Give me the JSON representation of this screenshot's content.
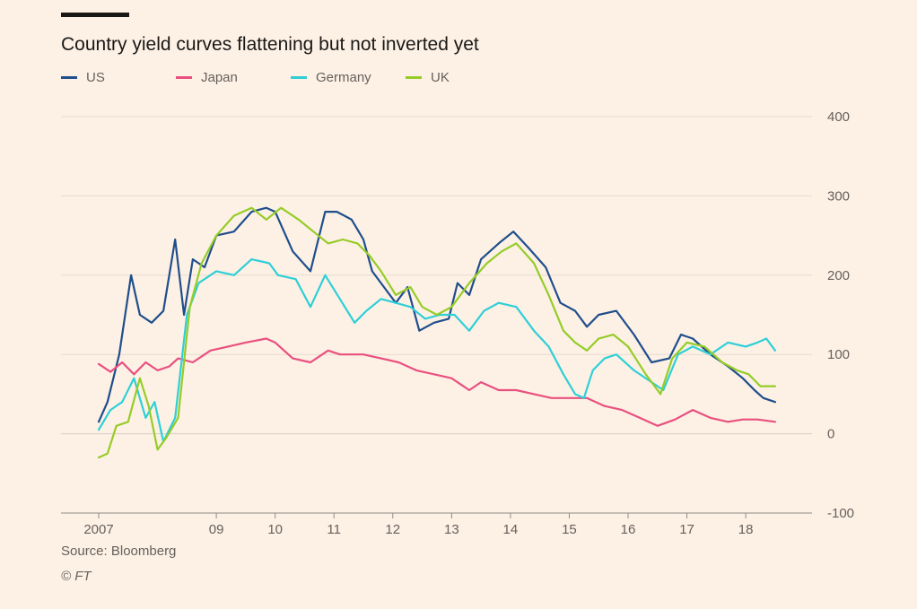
{
  "chart_data": {
    "type": "line",
    "title": "Country yield curves flattening but not inverted yet",
    "xlabel": "",
    "ylabel": "",
    "xlim": [
      2007.0,
      2018.7
    ],
    "ylim": [
      -100,
      400
    ],
    "y_ticks": [
      400,
      300,
      200,
      100,
      0,
      -100
    ],
    "x_ticks": [
      {
        "value": 2007.0,
        "label": "2007"
      },
      {
        "value": 2009.0,
        "label": "09"
      },
      {
        "value": 2010.0,
        "label": "10"
      },
      {
        "value": 2011.0,
        "label": "11"
      },
      {
        "value": 2012.0,
        "label": "12"
      },
      {
        "value": 2013.0,
        "label": "13"
      },
      {
        "value": 2014.0,
        "label": "14"
      },
      {
        "value": 2015.0,
        "label": "15"
      },
      {
        "value": 2016.0,
        "label": "16"
      },
      {
        "value": 2017.0,
        "label": "17"
      },
      {
        "value": 2018.0,
        "label": "18"
      }
    ],
    "grid": true,
    "legend_position": "top-left",
    "series": [
      {
        "name": "US",
        "color": "#1f4e8c",
        "points": [
          [
            2007.0,
            15
          ],
          [
            2007.15,
            40
          ],
          [
            2007.35,
            100
          ],
          [
            2007.45,
            150
          ],
          [
            2007.55,
            200
          ],
          [
            2007.7,
            150
          ],
          [
            2007.9,
            140
          ],
          [
            2008.1,
            155
          ],
          [
            2008.3,
            245
          ],
          [
            2008.45,
            150
          ],
          [
            2008.6,
            220
          ],
          [
            2008.8,
            210
          ],
          [
            2009.0,
            250
          ],
          [
            2009.3,
            255
          ],
          [
            2009.6,
            280
          ],
          [
            2009.85,
            285
          ],
          [
            2010.0,
            280
          ],
          [
            2010.3,
            230
          ],
          [
            2010.6,
            205
          ],
          [
            2010.85,
            280
          ],
          [
            2011.05,
            280
          ],
          [
            2011.3,
            270
          ],
          [
            2011.5,
            245
          ],
          [
            2011.65,
            205
          ],
          [
            2011.9,
            180
          ],
          [
            2012.05,
            165
          ],
          [
            2012.25,
            185
          ],
          [
            2012.45,
            130
          ],
          [
            2012.7,
            140
          ],
          [
            2012.95,
            145
          ],
          [
            2013.1,
            190
          ],
          [
            2013.3,
            175
          ],
          [
            2013.5,
            220
          ],
          [
            2013.8,
            240
          ],
          [
            2014.05,
            255
          ],
          [
            2014.3,
            235
          ],
          [
            2014.6,
            210
          ],
          [
            2014.85,
            165
          ],
          [
            2015.1,
            155
          ],
          [
            2015.3,
            135
          ],
          [
            2015.5,
            150
          ],
          [
            2015.8,
            155
          ],
          [
            2016.1,
            125
          ],
          [
            2016.4,
            90
          ],
          [
            2016.7,
            95
          ],
          [
            2016.9,
            125
          ],
          [
            2017.1,
            120
          ],
          [
            2017.4,
            100
          ],
          [
            2017.7,
            85
          ],
          [
            2017.95,
            70
          ],
          [
            2018.15,
            55
          ],
          [
            2018.3,
            45
          ],
          [
            2018.5,
            40
          ]
        ]
      },
      {
        "name": "Japan",
        "color": "#e9507f",
        "points": [
          [
            2007.0,
            88
          ],
          [
            2007.2,
            78
          ],
          [
            2007.4,
            90
          ],
          [
            2007.6,
            75
          ],
          [
            2007.8,
            90
          ],
          [
            2008.0,
            80
          ],
          [
            2008.2,
            85
          ],
          [
            2008.35,
            95
          ],
          [
            2008.6,
            90
          ],
          [
            2008.9,
            105
          ],
          [
            2009.2,
            110
          ],
          [
            2009.5,
            115
          ],
          [
            2009.85,
            120
          ],
          [
            2010.0,
            115
          ],
          [
            2010.3,
            95
          ],
          [
            2010.6,
            90
          ],
          [
            2010.9,
            105
          ],
          [
            2011.1,
            100
          ],
          [
            2011.5,
            100
          ],
          [
            2011.8,
            95
          ],
          [
            2012.1,
            90
          ],
          [
            2012.4,
            80
          ],
          [
            2012.7,
            75
          ],
          [
            2013.0,
            70
          ],
          [
            2013.3,
            55
          ],
          [
            2013.5,
            65
          ],
          [
            2013.8,
            55
          ],
          [
            2014.1,
            55
          ],
          [
            2014.4,
            50
          ],
          [
            2014.7,
            45
          ],
          [
            2015.0,
            45
          ],
          [
            2015.3,
            45
          ],
          [
            2015.6,
            35
          ],
          [
            2015.9,
            30
          ],
          [
            2016.2,
            20
          ],
          [
            2016.5,
            10
          ],
          [
            2016.8,
            18
          ],
          [
            2017.1,
            30
          ],
          [
            2017.4,
            20
          ],
          [
            2017.7,
            15
          ],
          [
            2017.95,
            18
          ],
          [
            2018.2,
            18
          ],
          [
            2018.5,
            15
          ]
        ]
      },
      {
        "name": "Germany",
        "color": "#2fcfd8",
        "points": [
          [
            2007.0,
            5
          ],
          [
            2007.2,
            30
          ],
          [
            2007.4,
            40
          ],
          [
            2007.6,
            70
          ],
          [
            2007.8,
            20
          ],
          [
            2007.95,
            40
          ],
          [
            2008.1,
            -10
          ],
          [
            2008.3,
            20
          ],
          [
            2008.5,
            150
          ],
          [
            2008.7,
            190
          ],
          [
            2009.0,
            205
          ],
          [
            2009.3,
            200
          ],
          [
            2009.6,
            220
          ],
          [
            2009.9,
            215
          ],
          [
            2010.05,
            200
          ],
          [
            2010.35,
            195
          ],
          [
            2010.6,
            160
          ],
          [
            2010.85,
            200
          ],
          [
            2011.1,
            170
          ],
          [
            2011.35,
            140
          ],
          [
            2011.55,
            155
          ],
          [
            2011.8,
            170
          ],
          [
            2012.05,
            165
          ],
          [
            2012.3,
            160
          ],
          [
            2012.55,
            145
          ],
          [
            2012.8,
            150
          ],
          [
            2013.05,
            150
          ],
          [
            2013.3,
            130
          ],
          [
            2013.55,
            155
          ],
          [
            2013.8,
            165
          ],
          [
            2014.1,
            160
          ],
          [
            2014.4,
            130
          ],
          [
            2014.65,
            110
          ],
          [
            2014.9,
            75
          ],
          [
            2015.1,
            50
          ],
          [
            2015.25,
            45
          ],
          [
            2015.4,
            80
          ],
          [
            2015.6,
            95
          ],
          [
            2015.8,
            100
          ],
          [
            2016.1,
            80
          ],
          [
            2016.4,
            65
          ],
          [
            2016.6,
            55
          ],
          [
            2016.85,
            100
          ],
          [
            2017.1,
            110
          ],
          [
            2017.4,
            100
          ],
          [
            2017.7,
            115
          ],
          [
            2018.0,
            110
          ],
          [
            2018.2,
            115
          ],
          [
            2018.35,
            120
          ],
          [
            2018.5,
            105
          ]
        ]
      },
      {
        "name": "UK",
        "color": "#96cc28",
        "points": [
          [
            2007.0,
            -30
          ],
          [
            2007.15,
            -25
          ],
          [
            2007.3,
            10
          ],
          [
            2007.5,
            15
          ],
          [
            2007.7,
            70
          ],
          [
            2007.85,
            35
          ],
          [
            2008.0,
            -20
          ],
          [
            2008.15,
            -5
          ],
          [
            2008.35,
            20
          ],
          [
            2008.55,
            160
          ],
          [
            2008.75,
            215
          ],
          [
            2009.0,
            250
          ],
          [
            2009.3,
            275
          ],
          [
            2009.6,
            285
          ],
          [
            2009.85,
            270
          ],
          [
            2010.1,
            285
          ],
          [
            2010.4,
            270
          ],
          [
            2010.65,
            255
          ],
          [
            2010.9,
            240
          ],
          [
            2011.15,
            245
          ],
          [
            2011.4,
            240
          ],
          [
            2011.6,
            225
          ],
          [
            2011.8,
            205
          ],
          [
            2012.05,
            175
          ],
          [
            2012.3,
            185
          ],
          [
            2012.5,
            160
          ],
          [
            2012.75,
            150
          ],
          [
            2013.0,
            160
          ],
          [
            2013.3,
            190
          ],
          [
            2013.6,
            215
          ],
          [
            2013.85,
            230
          ],
          [
            2014.1,
            240
          ],
          [
            2014.4,
            215
          ],
          [
            2014.65,
            175
          ],
          [
            2014.9,
            130
          ],
          [
            2015.1,
            115
          ],
          [
            2015.3,
            105
          ],
          [
            2015.5,
            120
          ],
          [
            2015.75,
            125
          ],
          [
            2016.0,
            110
          ],
          [
            2016.3,
            75
          ],
          [
            2016.55,
            50
          ],
          [
            2016.75,
            95
          ],
          [
            2017.0,
            115
          ],
          [
            2017.3,
            110
          ],
          [
            2017.6,
            90
          ],
          [
            2017.85,
            80
          ],
          [
            2018.05,
            75
          ],
          [
            2018.25,
            60
          ],
          [
            2018.5,
            60
          ]
        ]
      }
    ]
  },
  "footer": {
    "source": "Source: Bloomberg",
    "copyright": "© FT"
  }
}
